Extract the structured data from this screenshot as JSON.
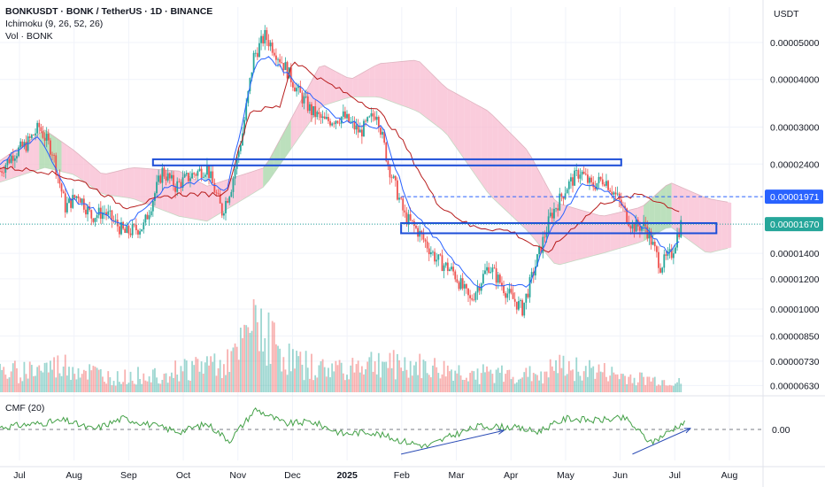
{
  "header": {
    "symbol": "BONKUSDT · BONK / TetherUS · 1D · BINANCE",
    "indicator_1": "Ichimoku (9, 26, 52, 26)",
    "indicator_2": "Vol · BONK"
  },
  "currency_label": "USDT",
  "cmf_panel": {
    "label": "CMF (20)",
    "zero_tick": "0.00"
  },
  "price_badges": [
    {
      "text": "0.00001971",
      "bg": "#2962ff",
      "fg": "#ffffff"
    },
    {
      "text": "0.00001670",
      "bg": "#26a69a",
      "fg": "#ffffff"
    }
  ],
  "colors": {
    "up": "#26a69a",
    "down": "#ef5350",
    "conversion": "#2962ff",
    "base": "#b71c1c",
    "cloud_bull": "#a5d6a7",
    "cloud_bear": "#f8bbd0",
    "box_outline": "#1e4fd8",
    "cmf": "#43a047"
  },
  "chart_data": [
    {
      "type": "candlestick",
      "title": "",
      "y_scale": "log",
      "y_ticks": [
        "0.00005000",
        "0.00004000",
        "0.00003000",
        "0.00002400",
        "0.00001971",
        "0.00001670",
        "0.00001400",
        "0.00001200",
        "0.00001000",
        "0.00000850",
        "0.00000730",
        "0.00000630"
      ],
      "x_ticks": [
        "Jul",
        "Aug",
        "Sep",
        "Oct",
        "Nov",
        "Dec",
        "2025",
        "Feb",
        "Mar",
        "Apr",
        "May",
        "Jun",
        "Jul",
        "Aug"
      ],
      "x_range": [
        "2024-07-01",
        "2025-08-14"
      ],
      "ohlc_path": [
        {
          "x": "2024-07-01",
          "y": 2.3e-05
        },
        {
          "x": "2024-07-08",
          "y": 2.55e-05
        },
        {
          "x": "2024-07-15",
          "y": 2.7e-05
        },
        {
          "x": "2024-07-22",
          "y": 3e-05
        },
        {
          "x": "2024-07-29",
          "y": 2.6e-05
        },
        {
          "x": "2024-08-05",
          "y": 1.85e-05
        },
        {
          "x": "2024-08-12",
          "y": 2e-05
        },
        {
          "x": "2024-08-19",
          "y": 1.75e-05
        },
        {
          "x": "2024-08-26",
          "y": 1.8e-05
        },
        {
          "x": "2024-09-06",
          "y": 1.58e-05
        },
        {
          "x": "2024-09-16",
          "y": 1.65e-05
        },
        {
          "x": "2024-09-26",
          "y": 2.3e-05
        },
        {
          "x": "2024-10-03",
          "y": 2.1e-05
        },
        {
          "x": "2024-10-12",
          "y": 2.25e-05
        },
        {
          "x": "2024-10-20",
          "y": 2.35e-05
        },
        {
          "x": "2024-10-28",
          "y": 1.8e-05
        },
        {
          "x": "2024-11-02",
          "y": 2.1e-05
        },
        {
          "x": "2024-11-08",
          "y": 2.9e-05
        },
        {
          "x": "2024-11-14",
          "y": 4.6e-05
        },
        {
          "x": "2024-11-20",
          "y": 5.2e-05
        },
        {
          "x": "2024-11-25",
          "y": 4.8e-05
        },
        {
          "x": "2024-12-01",
          "y": 4.3e-05
        },
        {
          "x": "2024-12-08",
          "y": 3.7e-05
        },
        {
          "x": "2024-12-15",
          "y": 3.3e-05
        },
        {
          "x": "2024-12-22",
          "y": 3.1e-05
        },
        {
          "x": "2025-01-01",
          "y": 3.2e-05
        },
        {
          "x": "2025-01-10",
          "y": 2.9e-05
        },
        {
          "x": "2025-01-19",
          "y": 3.3e-05
        },
        {
          "x": "2025-01-25",
          "y": 2.4e-05
        },
        {
          "x": "2025-02-03",
          "y": 1.75e-05
        },
        {
          "x": "2025-02-10",
          "y": 1.6e-05
        },
        {
          "x": "2025-02-20",
          "y": 1.35e-05
        },
        {
          "x": "2025-03-01",
          "y": 1.25e-05
        },
        {
          "x": "2025-03-10",
          "y": 1.05e-05
        },
        {
          "x": "2025-03-20",
          "y": 1.3e-05
        },
        {
          "x": "2025-03-30",
          "y": 1.1e-05
        },
        {
          "x": "2025-04-07",
          "y": 1e-05
        },
        {
          "x": "2025-04-15",
          "y": 1.35e-05
        },
        {
          "x": "2025-04-22",
          "y": 1.75e-05
        },
        {
          "x": "2025-05-01",
          "y": 2.1e-05
        },
        {
          "x": "2025-05-08",
          "y": 2.3e-05
        },
        {
          "x": "2025-05-14",
          "y": 2.1e-05
        },
        {
          "x": "2025-05-21",
          "y": 2.2e-05
        },
        {
          "x": "2025-05-28",
          "y": 1.95e-05
        },
        {
          "x": "2025-06-05",
          "y": 1.65e-05
        },
        {
          "x": "2025-06-12",
          "y": 1.65e-05
        },
        {
          "x": "2025-06-20",
          "y": 1.3e-05
        },
        {
          "x": "2025-06-26",
          "y": 1.4e-05
        },
        {
          "x": "2025-07-01",
          "y": 1.67e-05
        }
      ],
      "conversion_line": [
        {
          "x": "2024-07-01",
          "y": 2.4e-05
        },
        {
          "x": "2024-07-22",
          "y": 2.85e-05
        },
        {
          "x": "2024-08-08",
          "y": 1.95e-05
        },
        {
          "x": "2024-09-06",
          "y": 1.65e-05
        },
        {
          "x": "2024-09-26",
          "y": 2.05e-05
        },
        {
          "x": "2024-10-20",
          "y": 2.2e-05
        },
        {
          "x": "2024-10-30",
          "y": 2e-05
        },
        {
          "x": "2024-11-15",
          "y": 4.4e-05
        },
        {
          "x": "2024-11-22",
          "y": 4.6e-05
        },
        {
          "x": "2024-12-10",
          "y": 3.8e-05
        },
        {
          "x": "2025-01-01",
          "y": 3.1e-05
        },
        {
          "x": "2025-01-22",
          "y": 3e-05
        },
        {
          "x": "2025-02-05",
          "y": 1.85e-05
        },
        {
          "x": "2025-03-01",
          "y": 1.35e-05
        },
        {
          "x": "2025-03-12",
          "y": 1.15e-05
        },
        {
          "x": "2025-04-10",
          "y": 1.15e-05
        },
        {
          "x": "2025-04-22",
          "y": 1.6e-05
        },
        {
          "x": "2025-05-10",
          "y": 2.15e-05
        },
        {
          "x": "2025-05-25",
          "y": 2e-05
        },
        {
          "x": "2025-06-10",
          "y": 1.65e-05
        },
        {
          "x": "2025-06-25",
          "y": 1.4e-05
        },
        {
          "x": "2025-07-01",
          "y": 1.55e-05
        }
      ],
      "base_line": [
        {
          "x": "2024-07-01",
          "y": 2.35e-05
        },
        {
          "x": "2024-07-25",
          "y": 2.3e-05
        },
        {
          "x": "2024-08-15",
          "y": 2.15e-05
        },
        {
          "x": "2024-09-06",
          "y": 1.85e-05
        },
        {
          "x": "2024-10-05",
          "y": 2e-05
        },
        {
          "x": "2024-10-30",
          "y": 2e-05
        },
        {
          "x": "2024-11-12",
          "y": 3.3e-05
        },
        {
          "x": "2024-11-28",
          "y": 3.4e-05
        },
        {
          "x": "2024-12-05",
          "y": 4.5e-05
        },
        {
          "x": "2024-12-20",
          "y": 4e-05
        },
        {
          "x": "2025-01-20",
          "y": 3.3e-05
        },
        {
          "x": "2025-02-01",
          "y": 2.8e-05
        },
        {
          "x": "2025-02-20",
          "y": 1.9e-05
        },
        {
          "x": "2025-03-10",
          "y": 1.65e-05
        },
        {
          "x": "2025-04-01",
          "y": 1.6e-05
        },
        {
          "x": "2025-04-20",
          "y": 1.4e-05
        },
        {
          "x": "2025-05-05",
          "y": 1.65e-05
        },
        {
          "x": "2025-05-20",
          "y": 1.9e-05
        },
        {
          "x": "2025-06-10",
          "y": 2e-05
        },
        {
          "x": "2025-07-01",
          "y": 1.8e-05
        }
      ],
      "cloud_upper": [
        {
          "x": "2024-07-01",
          "y": 2.45e-05
        },
        {
          "x": "2024-07-25",
          "y": 2.95e-05
        },
        {
          "x": "2024-08-10",
          "y": 2.6e-05
        },
        {
          "x": "2024-08-25",
          "y": 2.25e-05
        },
        {
          "x": "2024-09-10",
          "y": 2.35e-05
        },
        {
          "x": "2024-10-05",
          "y": 2.3e-05
        },
        {
          "x": "2024-10-20",
          "y": 2.1e-05
        },
        {
          "x": "2024-11-20",
          "y": 2.35e-05
        },
        {
          "x": "2024-12-20",
          "y": 4.4e-05
        },
        {
          "x": "2025-01-05",
          "y": 4e-05
        },
        {
          "x": "2025-01-20",
          "y": 4.4e-05
        },
        {
          "x": "2025-02-10",
          "y": 4.5e-05
        },
        {
          "x": "2025-02-25",
          "y": 3.8e-05
        },
        {
          "x": "2025-03-20",
          "y": 3.3e-05
        },
        {
          "x": "2025-04-10",
          "y": 2.6e-05
        },
        {
          "x": "2025-04-25",
          "y": 1.9e-05
        },
        {
          "x": "2025-05-20",
          "y": 1.75e-05
        },
        {
          "x": "2025-06-10",
          "y": 1.85e-05
        },
        {
          "x": "2025-06-25",
          "y": 2.15e-05
        },
        {
          "x": "2025-07-15",
          "y": 1.95e-05
        },
        {
          "x": "2025-07-28",
          "y": 1.9e-05
        }
      ],
      "cloud_lower": [
        {
          "x": "2024-07-01",
          "y": 2.15e-05
        },
        {
          "x": "2024-07-25",
          "y": 2.35e-05
        },
        {
          "x": "2024-08-10",
          "y": 2.25e-05
        },
        {
          "x": "2024-08-25",
          "y": 2e-05
        },
        {
          "x": "2024-09-10",
          "y": 1.95e-05
        },
        {
          "x": "2024-10-05",
          "y": 1.75e-05
        },
        {
          "x": "2024-10-20",
          "y": 1.7e-05
        },
        {
          "x": "2024-11-20",
          "y": 2.1e-05
        },
        {
          "x": "2024-12-20",
          "y": 3.4e-05
        },
        {
          "x": "2025-01-05",
          "y": 3.6e-05
        },
        {
          "x": "2025-01-20",
          "y": 3.6e-05
        },
        {
          "x": "2025-02-10",
          "y": 3.3e-05
        },
        {
          "x": "2025-02-25",
          "y": 2.9e-05
        },
        {
          "x": "2025-03-20",
          "y": 2e-05
        },
        {
          "x": "2025-04-10",
          "y": 1.6e-05
        },
        {
          "x": "2025-04-25",
          "y": 1.3e-05
        },
        {
          "x": "2025-05-20",
          "y": 1.4e-05
        },
        {
          "x": "2025-06-10",
          "y": 1.5e-05
        },
        {
          "x": "2025-06-25",
          "y": 1.65e-05
        },
        {
          "x": "2025-07-15",
          "y": 1.4e-05
        },
        {
          "x": "2025-07-28",
          "y": 1.45e-05
        }
      ],
      "cloud_bull_ranges": [
        [
          "2024-07-22",
          "2024-08-02"
        ],
        [
          "2024-11-18",
          "2024-12-02"
        ],
        [
          "2025-06-10",
          "2025-06-25"
        ]
      ],
      "annotations": {
        "boxes": [
          {
            "x0": "2024-09-21",
            "x1": "2025-05-30",
            "y0": 2.47e-05,
            "y1": 2.38e-05
          },
          {
            "x0": "2025-02-01",
            "x1": "2025-07-20",
            "y0": 1.68e-05,
            "y1": 1.58e-05
          }
        ],
        "dashed_level": {
          "x0": "2025-02-01",
          "y": 1.971e-05
        },
        "dotted_level": {
          "x0": "2024-07-01",
          "y": 1.67e-05
        }
      }
    },
    {
      "type": "bar",
      "title": "",
      "ylabel": "",
      "volume_path": [
        {
          "x": "2024-07-01",
          "v": 0.25
        },
        {
          "x": "2024-08-05",
          "v": 0.35
        },
        {
          "x": "2024-09-01",
          "v": 0.18
        },
        {
          "x": "2024-10-01",
          "v": 0.28
        },
        {
          "x": "2024-11-05",
          "v": 0.45
        },
        {
          "x": "2024-11-15",
          "v": 1.0
        },
        {
          "x": "2024-12-01",
          "v": 0.45
        },
        {
          "x": "2024-12-20",
          "v": 0.3
        },
        {
          "x": "2025-01-20",
          "v": 0.4
        },
        {
          "x": "2025-02-05",
          "v": 0.35
        },
        {
          "x": "2025-03-10",
          "v": 0.25
        },
        {
          "x": "2025-04-10",
          "v": 0.22
        },
        {
          "x": "2025-05-01",
          "v": 0.35
        },
        {
          "x": "2025-06-01",
          "v": 0.2
        },
        {
          "x": "2025-07-01",
          "v": 0.12
        }
      ]
    },
    {
      "type": "line",
      "title": "CMF (20)",
      "y_ticks": [
        "0.00"
      ],
      "ylim": [
        -0.3,
        0.3
      ],
      "x": [
        "2024-07-01",
        "2024-07-20",
        "2024-08-05",
        "2024-08-20",
        "2024-09-05",
        "2024-09-20",
        "2024-10-05",
        "2024-10-20",
        "2024-11-01",
        "2024-11-15",
        "2024-12-01",
        "2024-12-15",
        "2025-01-01",
        "2025-01-15",
        "2025-02-01",
        "2025-02-15",
        "2025-03-01",
        "2025-03-15",
        "2025-04-01",
        "2025-04-15",
        "2025-05-01",
        "2025-05-15",
        "2025-06-01",
        "2025-06-15",
        "2025-07-01",
        "2025-07-03"
      ],
      "values": [
        0.02,
        0.05,
        0.08,
        0.0,
        0.1,
        0.04,
        -0.02,
        0.05,
        -0.1,
        0.18,
        0.05,
        0.07,
        -0.04,
        -0.02,
        -0.1,
        -0.15,
        -0.05,
        0.03,
        0.02,
        -0.02,
        0.1,
        0.08,
        0.1,
        -0.12,
        0.05,
        0.06
      ],
      "trend_arrows": [
        {
          "x0": "2025-02-01",
          "y0": -0.22,
          "x1": "2025-03-28",
          "y1": -0.01
        },
        {
          "x0": "2025-06-05",
          "y0": -0.22,
          "x1": "2025-07-06",
          "y1": 0.01
        }
      ]
    }
  ]
}
